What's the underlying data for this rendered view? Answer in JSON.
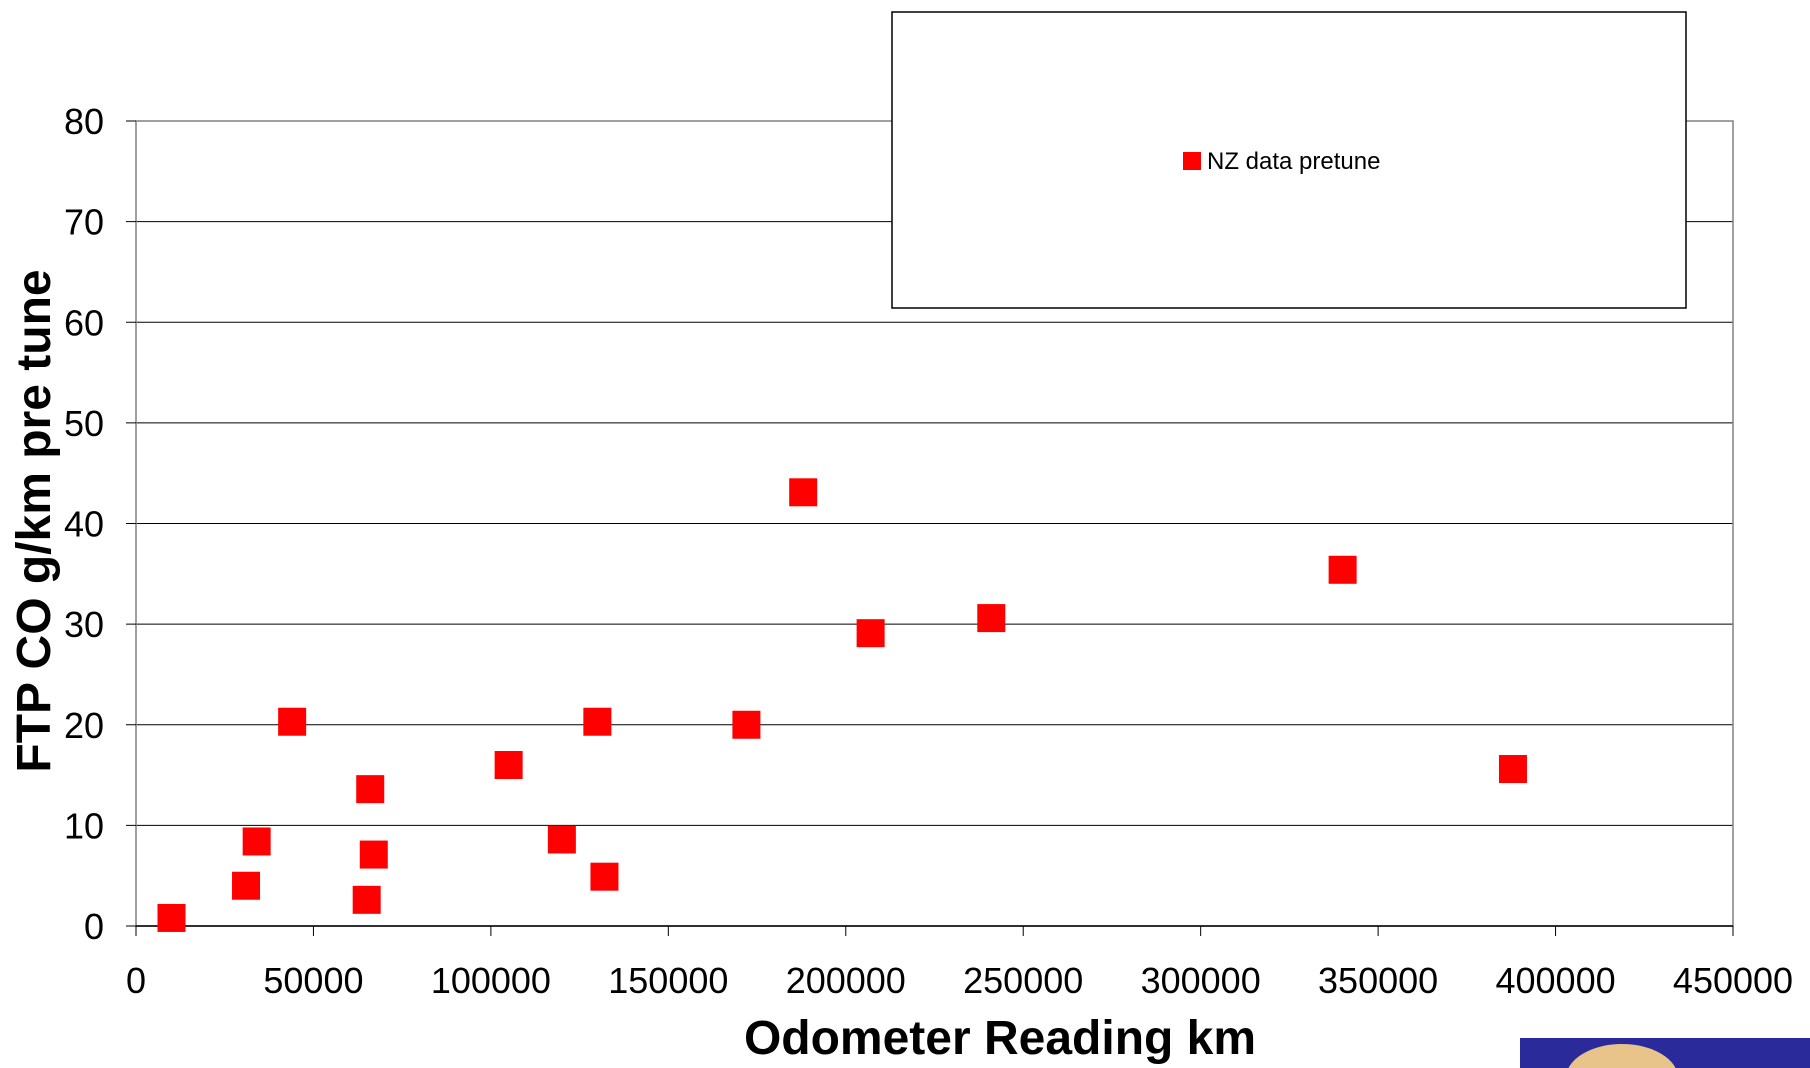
{
  "chart_data": {
    "type": "scatter",
    "xlabel": "Odometer Reading km",
    "ylabel": "FTP CO g/km pre tune",
    "xlim": [
      0,
      450000
    ],
    "ylim": [
      0,
      80
    ],
    "xticks": [
      0,
      50000,
      100000,
      150000,
      200000,
      250000,
      300000,
      350000,
      400000,
      450000
    ],
    "yticks": [
      0,
      10,
      20,
      30,
      40,
      50,
      60,
      70,
      80
    ],
    "grid": "horizontal",
    "legend_position": "top-right",
    "series": [
      {
        "name": "NZ data pretune",
        "color": "#ff0000",
        "marker": "square",
        "points": [
          {
            "x": 10000,
            "y": 0.8
          },
          {
            "x": 31000,
            "y": 4.0
          },
          {
            "x": 34000,
            "y": 8.4
          },
          {
            "x": 44000,
            "y": 20.3
          },
          {
            "x": 65000,
            "y": 2.6
          },
          {
            "x": 66000,
            "y": 13.6
          },
          {
            "x": 67000,
            "y": 7.1
          },
          {
            "x": 105000,
            "y": 16.0
          },
          {
            "x": 120000,
            "y": 8.6
          },
          {
            "x": 130000,
            "y": 20.3
          },
          {
            "x": 132000,
            "y": 4.9
          },
          {
            "x": 172000,
            "y": 20.0
          },
          {
            "x": 188000,
            "y": 43.1
          },
          {
            "x": 207000,
            "y": 29.1
          },
          {
            "x": 241000,
            "y": 30.6
          },
          {
            "x": 340000,
            "y": 35.4
          },
          {
            "x": 388000,
            "y": 15.6
          }
        ]
      }
    ]
  }
}
